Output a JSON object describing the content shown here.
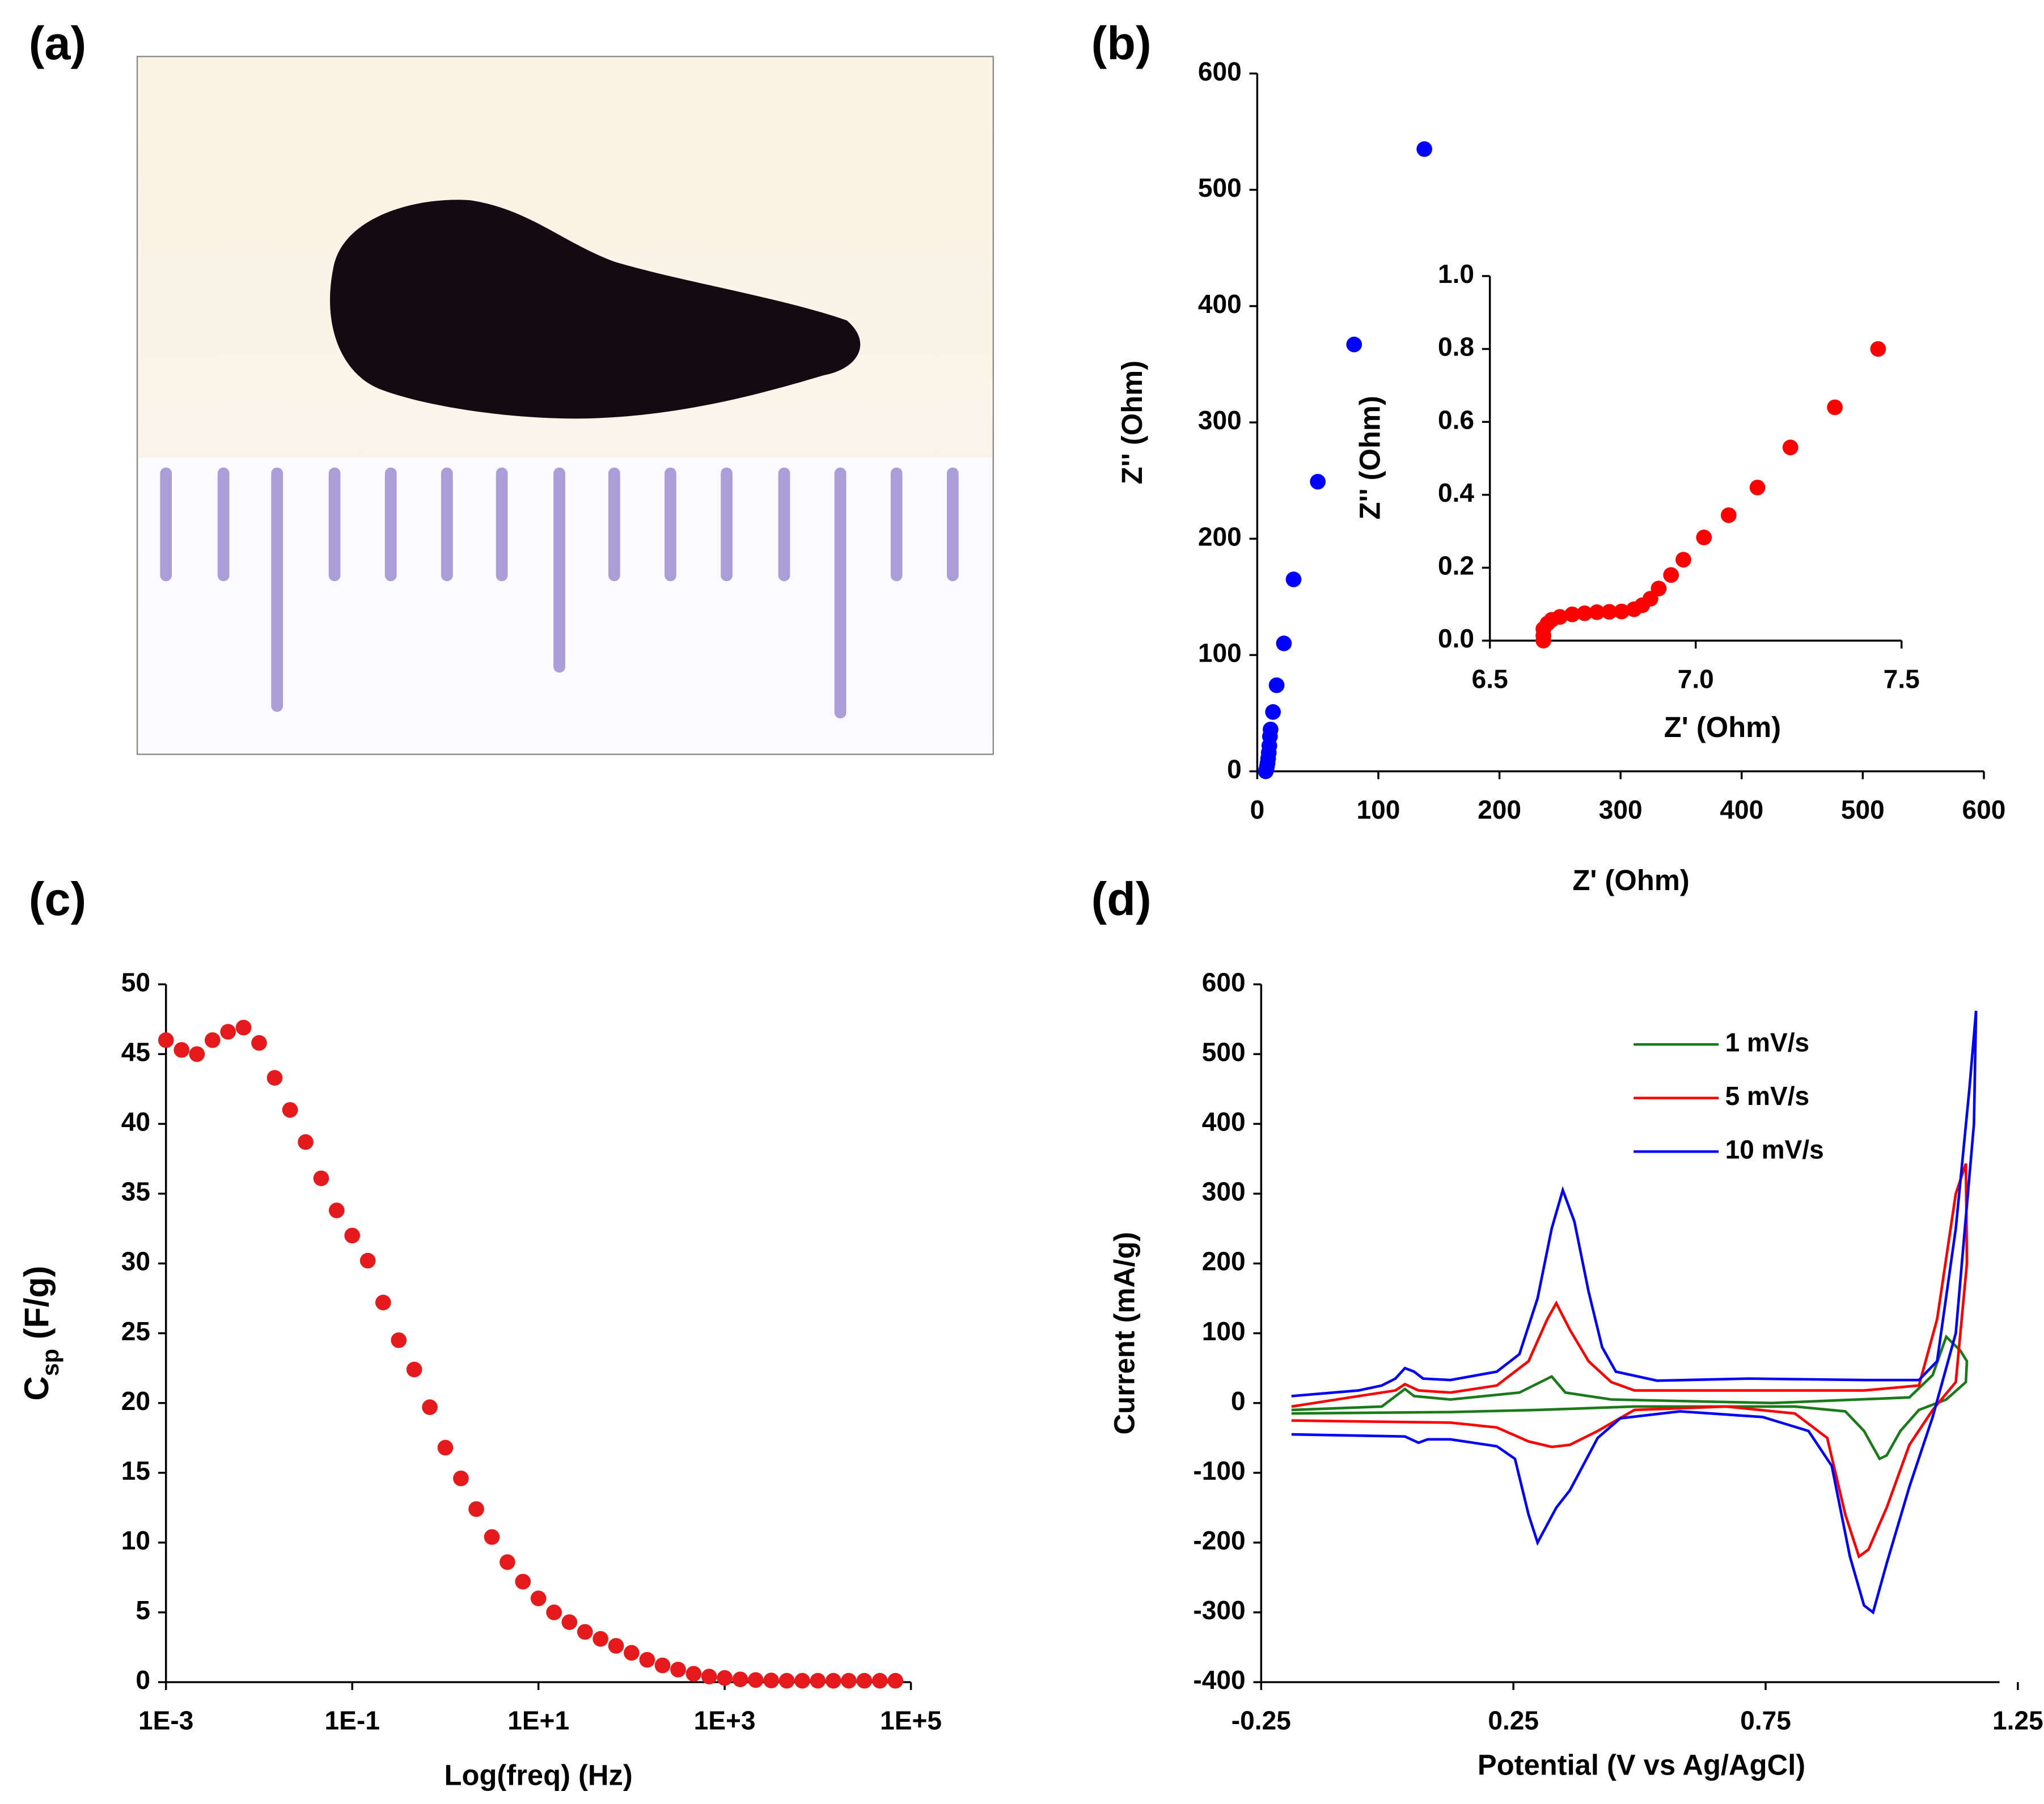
{
  "chart_data": [
    {
      "type": "image",
      "label": "(a)"
    },
    {
      "type": "scatter",
      "label": "(b)",
      "xlabel": "Z' (Ohm)",
      "ylabel": "Z'' (Ohm)",
      "color": "#0000ff",
      "x": [
        138,
        80,
        50,
        30,
        22,
        16,
        13,
        11,
        10.5,
        10,
        9.5,
        9,
        8.5,
        8,
        7.5,
        7
      ],
      "values": [
        535,
        367,
        249,
        165,
        110,
        74,
        51,
        36,
        30,
        22,
        16,
        11,
        7,
        4,
        1.5,
        0
      ],
      "xlim": [
        0,
        600
      ],
      "ylim": [
        0,
        600
      ],
      "xticks": [
        0,
        100,
        200,
        300,
        400,
        500,
        600
      ],
      "yticks": [
        0,
        100,
        200,
        300,
        400,
        500,
        600
      ],
      "inset": {
        "type": "scatter",
        "xlabel": "Z' (Ohm)",
        "ylabel": "Z'' (Ohm)",
        "color": "#ff0000",
        "x": [
          7.443,
          7.338,
          7.23,
          7.15,
          7.08,
          7.02,
          6.97,
          6.94,
          6.91,
          6.89,
          6.87,
          6.85,
          6.82,
          6.79,
          6.76,
          6.73,
          6.7,
          6.67,
          6.65,
          6.64,
          6.63,
          6.63,
          6.63
        ],
        "values": [
          0.8,
          0.64,
          0.53,
          0.42,
          0.344,
          0.283,
          0.222,
          0.18,
          0.143,
          0.115,
          0.097,
          0.086,
          0.08,
          0.079,
          0.078,
          0.075,
          0.072,
          0.065,
          0.057,
          0.047,
          0.032,
          0.014,
          0
        ],
        "xlim": [
          6.5,
          7.5
        ],
        "ylim": [
          0,
          1
        ],
        "xticks": [
          6.5,
          {
            "value": 7,
            "label": "7.0"
          },
          7.5
        ],
        "yticks": [
          {
            "value": 0,
            "label": "0.0"
          },
          0.2,
          0.4,
          0.6,
          0.8,
          {
            "value": 1,
            "label": "1.0"
          }
        ]
      }
    },
    {
      "type": "scatter",
      "label": "(c)",
      "xlabel": "Log(freq) (Hz)",
      "ylabel": {
        "text": "C",
        "sub": "sp",
        "rest": " (F/g)"
      },
      "color": "#e41a1c",
      "xscale": "log",
      "x": [
        0.001,
        0.00147,
        0.00215,
        0.00316,
        0.00464,
        0.00681,
        0.01,
        0.0147,
        0.0215,
        0.0316,
        0.0464,
        0.0681,
        0.1,
        0.147,
        0.215,
        0.316,
        0.464,
        0.681,
        1,
        1.47,
        2.15,
        3.16,
        4.64,
        6.81,
        10,
        14.7,
        21.5,
        31.6,
        46.4,
        68.1,
        100,
        147,
        215,
        316,
        464,
        681,
        1000,
        1470,
        2150,
        3160,
        4640,
        6810,
        10000,
        14700,
        21500,
        31600,
        46400,
        68100
      ],
      "values": [
        46.0,
        45.3,
        45.0,
        46.0,
        46.6,
        46.9,
        45.8,
        43.3,
        41.0,
        38.7,
        36.1,
        33.8,
        32.0,
        30.2,
        27.2,
        24.5,
        22.4,
        19.7,
        16.8,
        14.6,
        12.4,
        10.4,
        8.6,
        7.2,
        6.0,
        5.0,
        4.3,
        3.6,
        3.1,
        2.6,
        2.1,
        1.6,
        1.2,
        0.9,
        0.6,
        0.4,
        0.3,
        0.2,
        0.15,
        0.12,
        0.1,
        0.1,
        0.1,
        0.1,
        0.1,
        0.1,
        0.1,
        0.1
      ],
      "xlim": [
        0.001,
        100000
      ],
      "ylim": [
        0,
        50
      ],
      "xticks": [
        {
          "value": 0.001,
          "label": "1E-3"
        },
        {
          "value": 0.1,
          "label": "1E-1"
        },
        {
          "value": 10,
          "label": "1E+1"
        },
        {
          "value": 1000,
          "label": "1E+3"
        },
        {
          "value": 100000,
          "label": "1E+5"
        }
      ],
      "yticks": [
        0,
        5,
        10,
        15,
        20,
        25,
        30,
        35,
        40,
        45,
        50
      ]
    },
    {
      "type": "line",
      "label": "(d)",
      "xlabel": "Potential (V vs Ag/AgCl)",
      "ylabel": "Current (mA/g)",
      "legend": "top-right",
      "xlim": [
        -0.25,
        1.25
      ],
      "ylim": [
        -400,
        600
      ],
      "xticks": [
        -0.25,
        0.25,
        0.75,
        1.25
      ],
      "yticks": [
        -400,
        -300,
        -200,
        -100,
        0,
        100,
        200,
        300,
        400,
        500,
        600
      ],
      "series": [
        {
          "name": "1 mV/s",
          "color": "#1a7a1a",
          "x": [
            -0.19,
            -0.011,
            0.035,
            0.053,
            0.125,
            0.262,
            0.326,
            0.353,
            0.444,
            0.763,
            1.035,
            1.081,
            1.108,
            1.136,
            1.149,
            1.147,
            1.108,
            1.054,
            1.017,
            0.99,
            0.976,
            0.945,
            0.908,
            0.808,
            0.49,
            0.298,
            0.125,
            -0.19
          ],
          "values": [
            -10,
            -5,
            20,
            10,
            5,
            15,
            38,
            15,
            5,
            0,
            8,
            40,
            95,
            75,
            60,
            30,
            5,
            -10,
            -40,
            -75,
            -80,
            -40,
            -12,
            -5,
            -5,
            -10,
            -13,
            -15
          ]
        },
        {
          "name": "5 mV/s",
          "color": "#ff0000",
          "x": [
            -0.19,
            -0.057,
            0.016,
            0.035,
            0.062,
            0.125,
            0.217,
            0.28,
            0.317,
            0.335,
            0.362,
            0.399,
            0.444,
            0.49,
            0.717,
            0.945,
            1.054,
            1.09,
            1.127,
            1.147,
            1.149,
            1.127,
            1.081,
            1.035,
            0.99,
            0.954,
            0.935,
            0.908,
            0.872,
            0.808,
            0.672,
            0.49,
            0.417,
            0.362,
            0.326,
            0.28,
            0.217,
            0.125,
            -0.19
          ],
          "values": [
            -5,
            10,
            18,
            27,
            18,
            15,
            25,
            60,
            120,
            143,
            105,
            60,
            30,
            18,
            18,
            18,
            25,
            120,
            300,
            343,
            200,
            30,
            -10,
            -60,
            -150,
            -210,
            -220,
            -160,
            -50,
            -15,
            -5,
            -10,
            -40,
            -60,
            -63,
            -55,
            -35,
            -28,
            -25
          ]
        },
        {
          "name": "10 mV/s",
          "color": "#0000ff",
          "x": [
            -0.19,
            -0.057,
            -0.011,
            0.016,
            0.035,
            0.053,
            0.071,
            0.125,
            0.217,
            0.262,
            0.298,
            0.326,
            0.348,
            0.371,
            0.399,
            0.426,
            0.453,
            0.535,
            0.717,
            0.945,
            1.054,
            1.09,
            1.127,
            1.154,
            1.167,
            1.163,
            1.127,
            1.081,
            1.035,
            0.99,
            0.963,
            0.945,
            0.917,
            0.881,
            0.835,
            0.744,
            0.58,
            0.462,
            0.417,
            0.362,
            0.335,
            0.298,
            0.28,
            0.253,
            0.217,
            0.125,
            0.08,
            0.062,
            0.035,
            -0.19
          ],
          "values": [
            10,
            18,
            25,
            35,
            50,
            45,
            35,
            33,
            45,
            70,
            150,
            250,
            305,
            260,
            160,
            80,
            45,
            32,
            35,
            33,
            33,
            60,
            250,
            450,
            562,
            400,
            100,
            -20,
            -120,
            -230,
            -300,
            -290,
            -220,
            -90,
            -40,
            -20,
            -12,
            -22,
            -50,
            -125,
            -150,
            -200,
            -160,
            -80,
            -62,
            -52,
            -52,
            -57,
            -48,
            -45
          ]
        }
      ]
    }
  ]
}
